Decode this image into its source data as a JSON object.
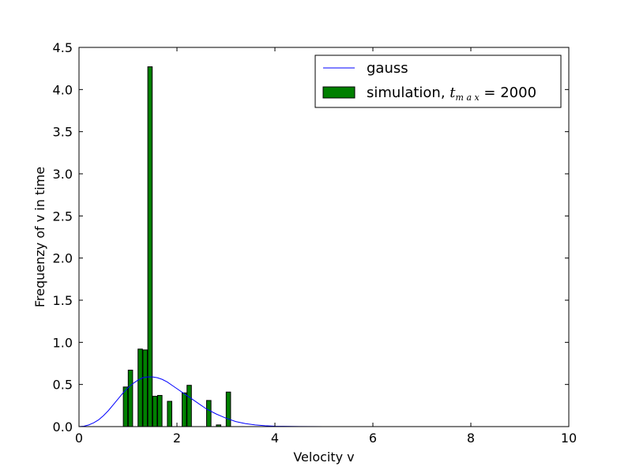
{
  "chart_data": {
    "type": "bar",
    "title": "",
    "xlabel": "Velocity v",
    "ylabel": "Frequenzy of v in time",
    "xlim": [
      0,
      10
    ],
    "ylim": [
      0,
      4.5
    ],
    "xticks": [
      "0",
      "2",
      "4",
      "6",
      "8",
      "10"
    ],
    "yticks": [
      "0.0",
      "0.5",
      "1.0",
      "1.5",
      "2.0",
      "2.5",
      "3.0",
      "3.5",
      "4.0",
      "4.5"
    ],
    "grid": false,
    "legend_position": "top-right",
    "series": [
      {
        "name": "gauss",
        "type": "line",
        "color": "#0000ff",
        "x": [
          0,
          0.1,
          0.2,
          0.3,
          0.4,
          0.5,
          0.6,
          0.7,
          0.8,
          0.9,
          1.0,
          1.1,
          1.2,
          1.3,
          1.4,
          1.5,
          1.6,
          1.7,
          1.8,
          1.9,
          2.0,
          2.2,
          2.4,
          2.6,
          2.8,
          3.0,
          3.2,
          3.4,
          3.6,
          3.8,
          4.0,
          4.5,
          5.0,
          6.0,
          8.0,
          10.0
        ],
        "y": [
          0,
          0.005,
          0.02,
          0.045,
          0.08,
          0.13,
          0.19,
          0.26,
          0.33,
          0.4,
          0.46,
          0.51,
          0.55,
          0.58,
          0.59,
          0.59,
          0.58,
          0.56,
          0.53,
          0.49,
          0.45,
          0.37,
          0.29,
          0.21,
          0.15,
          0.1,
          0.06,
          0.035,
          0.02,
          0.01,
          0.005,
          0.001,
          0,
          0,
          0,
          0
        ]
      },
      {
        "name_prefix": "simulation, ",
        "name_math_base": "t",
        "name_math_sub": "m a x",
        "name_suffix": " = 2000",
        "type": "bar",
        "color": "#008000",
        "bin_width": 0.09,
        "x": [
          0.95,
          1.05,
          1.25,
          1.35,
          1.45,
          1.55,
          1.65,
          1.85,
          2.15,
          2.25,
          2.65,
          2.85,
          3.05
        ],
        "values": [
          0.47,
          0.67,
          0.92,
          0.91,
          4.27,
          0.36,
          0.37,
          0.3,
          0.4,
          0.49,
          0.31,
          0.02,
          0.41
        ]
      }
    ]
  }
}
